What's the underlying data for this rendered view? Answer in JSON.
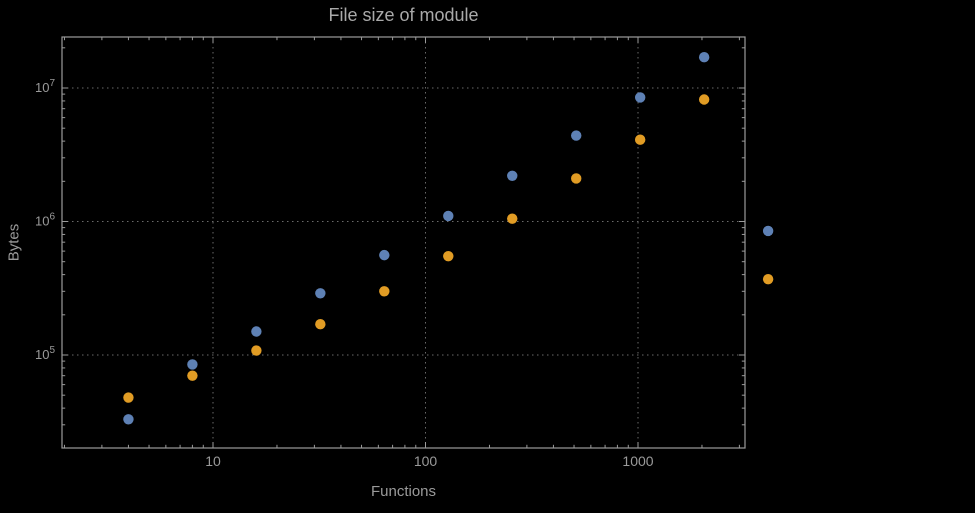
{
  "chart_data": {
    "type": "scatter",
    "title": "File size of module",
    "xlabel": "Functions",
    "ylabel": "Bytes",
    "x_scale": "log",
    "y_scale": "log",
    "grid": true,
    "legend": false,
    "x_range": [
      2,
      3200
    ],
    "y_range": [
      20000,
      24000000
    ],
    "x": [
      4,
      8,
      16,
      32,
      64,
      128,
      256,
      512,
      1024,
      2048,
      4096
    ],
    "series": [
      {
        "name": "blue",
        "color": "#5e81b5",
        "values": [
          33000,
          85000,
          150000,
          290000,
          560000,
          1100000,
          2200000,
          4400000,
          8500000,
          17000000,
          850000
        ]
      },
      {
        "name": "orange",
        "color": "#e19c24",
        "values": [
          48000,
          70000,
          108000,
          170000,
          300000,
          550000,
          1050000,
          2100000,
          4100000,
          8200000,
          370000
        ]
      }
    ],
    "x_ticks": [
      {
        "value": 10,
        "label": "10"
      },
      {
        "value": 100,
        "label": "100"
      },
      {
        "value": 1000,
        "label": "1000"
      }
    ],
    "y_ticks": [
      {
        "value": 100000,
        "base": "10",
        "exp": "5"
      },
      {
        "value": 1000000,
        "base": "10",
        "exp": "6"
      },
      {
        "value": 10000000,
        "base": "10",
        "exp": "7"
      }
    ]
  },
  "colors": {
    "background": "#000000",
    "frame": "#9b9b9b",
    "grid": "#6a6a6a",
    "text": "#9a9a9a",
    "title": "#a9a9a9"
  }
}
